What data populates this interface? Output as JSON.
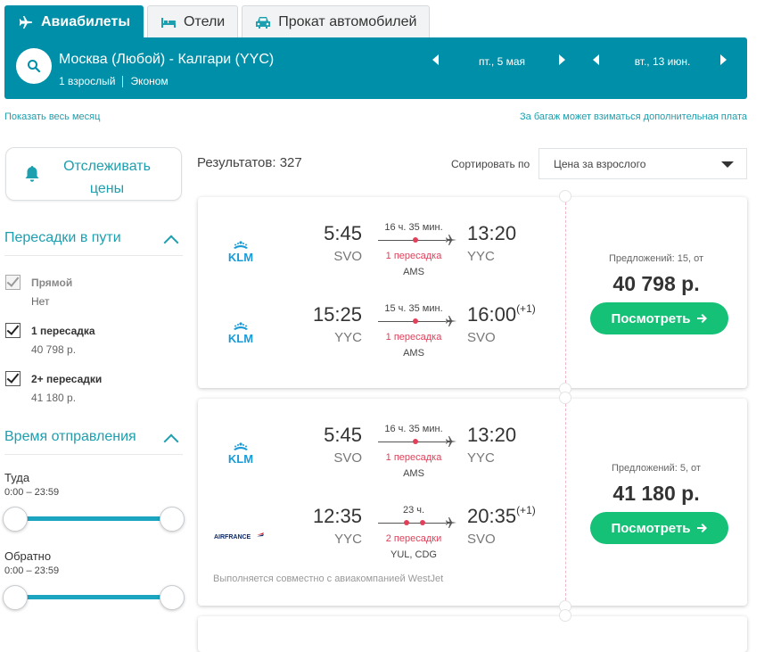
{
  "tabs": [
    {
      "label": "Авиабилеты",
      "icon": "plane-icon",
      "active": true
    },
    {
      "label": "Отели",
      "icon": "bed-icon",
      "active": false
    },
    {
      "label": "Прокат автомобилей",
      "icon": "car-icon",
      "active": false
    }
  ],
  "search": {
    "route": "Москва (Любой) - Калгари (YYC)",
    "passengers": "1 взрослый",
    "cabin": "Эконом",
    "depart_date": "пт., 5 мая",
    "return_date": "вт., 13 июн."
  },
  "links": {
    "show_month": "Показать весь месяц",
    "baggage_note": "За багаж может взиматься дополнительная плата"
  },
  "sidebar": {
    "track_prices": "Отслеживать цены",
    "stops_title": "Пересадки в пути",
    "stops": [
      {
        "label": "Прямой",
        "sub": "Нет",
        "checked": true,
        "disabled": true
      },
      {
        "label": "1 пересадка",
        "sub": "40 798 р.",
        "checked": true,
        "disabled": false
      },
      {
        "label": "2+ пересадки",
        "sub": "41 180 р.",
        "checked": true,
        "disabled": false
      }
    ],
    "departure_title": "Время отправления",
    "outbound_label": "Туда",
    "outbound_range": "0:00 – 23:59",
    "return_label": "Обратно",
    "return_range": "0:00 – 23:59"
  },
  "results": {
    "count_label": "Результатов: 327",
    "sort_label": "Сортировать по",
    "sort_value": "Цена за взрослого"
  },
  "cards": [
    {
      "legs": [
        {
          "airline": "KLM",
          "dep_time": "5:45",
          "dep_code": "SVO",
          "duration": "16 ч. 35 мин.",
          "stops": "1 пересадка",
          "via": "AMS",
          "arr_time": "13:20",
          "arr_plus": "",
          "arr_code": "YYC"
        },
        {
          "airline": "KLM",
          "dep_time": "15:25",
          "dep_code": "YYC",
          "duration": "15 ч. 35 мин.",
          "stops": "1 пересадка",
          "via": "AMS",
          "arr_time": "16:00",
          "arr_plus": "(+1)",
          "arr_code": "SVO"
        }
      ],
      "offers": "Предложений: 15, от",
      "price": "40 798 р.",
      "button": "Посмотреть",
      "operated": ""
    },
    {
      "legs": [
        {
          "airline": "KLM",
          "dep_time": "5:45",
          "dep_code": "SVO",
          "duration": "16 ч. 35 мин.",
          "stops": "1 пересадка",
          "via": "AMS",
          "arr_time": "13:20",
          "arr_plus": "",
          "arr_code": "YYC"
        },
        {
          "airline": "AIRFRANCE",
          "dep_time": "12:35",
          "dep_code": "YYC",
          "duration": "23 ч.",
          "stops": "2 пересадки",
          "via": "YUL, CDG",
          "arr_time": "20:35",
          "arr_plus": "(+1)",
          "arr_code": "SVO"
        }
      ],
      "offers": "Предложений: 5, от",
      "price": "41 180 р.",
      "button": "Посмотреть",
      "operated": "Выполняется совместно с авиакомпанией WestJet"
    }
  ],
  "colors": {
    "brand": "#008fa8",
    "link": "#1c9fae",
    "cta": "#15c176",
    "stops_red": "#e0405a"
  }
}
